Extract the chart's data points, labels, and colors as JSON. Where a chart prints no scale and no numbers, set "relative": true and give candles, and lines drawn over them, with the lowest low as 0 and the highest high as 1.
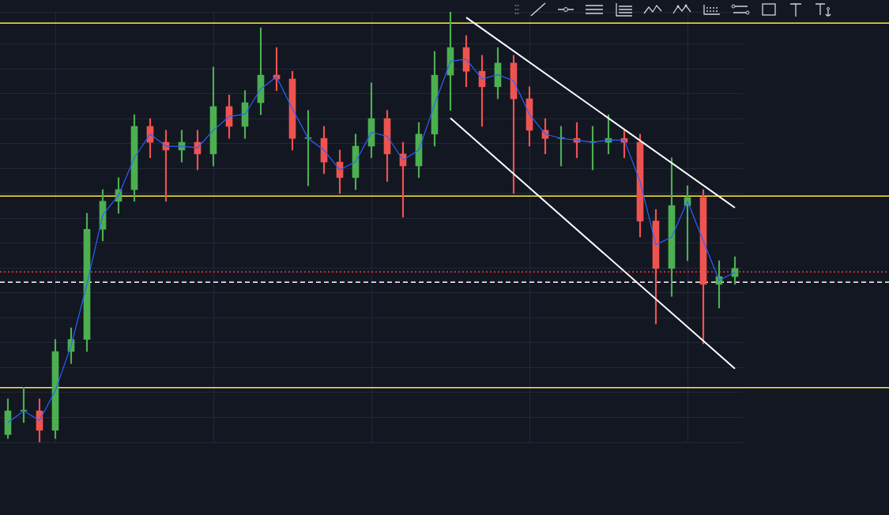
{
  "chart_data": {
    "type": "candlestick",
    "relative": true,
    "tick_labels": false,
    "grid": true,
    "categories": [
      null,
      null,
      null,
      null,
      null,
      null,
      null,
      null,
      null,
      null,
      null,
      null,
      null,
      null,
      null,
      null,
      null,
      null,
      null,
      null,
      null,
      null,
      null,
      null,
      null,
      null,
      null,
      null,
      null,
      null,
      null,
      null,
      null,
      null,
      null,
      null,
      null,
      null,
      null,
      null,
      null,
      null,
      null,
      null,
      null,
      null,
      null
    ],
    "ohlc": [
      [
        0.018,
        0.101,
        0.009,
        0.073
      ],
      [
        0.073,
        0.128,
        0.046,
        0.073
      ],
      [
        0.073,
        0.101,
        0,
        0.028
      ],
      [
        0.028,
        0.239,
        0.009,
        0.211
      ],
      [
        0.211,
        0.266,
        0.183,
        0.239
      ],
      [
        0.239,
        0.532,
        0.211,
        0.495
      ],
      [
        0.495,
        0.587,
        0.468,
        0.56
      ],
      [
        0.56,
        0.615,
        0.532,
        0.587
      ],
      [
        0.587,
        0.761,
        0.56,
        0.734
      ],
      [
        0.734,
        0.752,
        0.661,
        0.697
      ],
      [
        0.697,
        0.725,
        0.56,
        0.679
      ],
      [
        0.679,
        0.725,
        0.651,
        0.697
      ],
      [
        0.697,
        0.725,
        0.633,
        0.67
      ],
      [
        0.67,
        0.872,
        0.642,
        0.78
      ],
      [
        0.78,
        0.807,
        0.706,
        0.734
      ],
      [
        0.734,
        0.817,
        0.706,
        0.789
      ],
      [
        0.789,
        0.963,
        0.761,
        0.853
      ],
      [
        0.853,
        0.917,
        0.817,
        0.844
      ],
      [
        0.844,
        0.862,
        0.679,
        0.706
      ],
      [
        0.706,
        0.771,
        0.596,
        0.706
      ],
      [
        0.706,
        0.734,
        0.624,
        0.651
      ],
      [
        0.651,
        0.679,
        0.578,
        0.615
      ],
      [
        0.615,
        0.716,
        0.587,
        0.688
      ],
      [
        0.688,
        0.835,
        0.661,
        0.752
      ],
      [
        0.752,
        0.771,
        0.606,
        0.67
      ],
      [
        0.67,
        0.697,
        0.523,
        0.642
      ],
      [
        0.642,
        0.743,
        0.615,
        0.716
      ],
      [
        0.716,
        0.908,
        0.688,
        0.853
      ],
      [
        0.853,
        1,
        0.771,
        0.917
      ],
      [
        0.917,
        0.945,
        0.826,
        0.862
      ],
      [
        0.862,
        0.899,
        0.734,
        0.826
      ],
      [
        0.826,
        0.917,
        0.798,
        0.881
      ],
      [
        0.881,
        0.899,
        0.578,
        0.798
      ],
      [
        0.798,
        0.826,
        0.688,
        0.725
      ],
      [
        0.725,
        0.752,
        0.67,
        0.706
      ],
      [
        0.706,
        0.734,
        0.642,
        0.706
      ],
      [
        0.706,
        0.743,
        0.661,
        0.697
      ],
      [
        0.697,
        0.734,
        0.633,
        0.697
      ],
      [
        0.697,
        0.761,
        0.67,
        0.706
      ],
      [
        0.706,
        0.725,
        0.661,
        0.697
      ],
      [
        0.697,
        0.716,
        0.477,
        0.514
      ],
      [
        0.514,
        0.541,
        0.275,
        0.404
      ],
      [
        0.404,
        0.661,
        0.339,
        0.55
      ],
      [
        0.55,
        0.596,
        0.422,
        0.569
      ],
      [
        0.569,
        0.587,
        0.229,
        0.367
      ],
      [
        0.367,
        0.422,
        0.312,
        0.385
      ],
      [
        0.385,
        0.431,
        0.367,
        0.404
      ]
    ],
    "colors": [
      "#4caf50",
      "#4caf50",
      "#ef5350",
      "#4caf50",
      "#4caf50",
      "#4caf50",
      "#4caf50",
      "#4caf50",
      "#4caf50",
      "#ef5350",
      "#ef5350",
      "#4caf50",
      "#ef5350",
      "#4caf50",
      "#ef5350",
      "#4caf50",
      "#4caf50",
      "#ef5350",
      "#ef5350",
      "#4caf50",
      "#ef5350",
      "#ef5350",
      "#4caf50",
      "#4caf50",
      "#ef5350",
      "#ef5350",
      "#4caf50",
      "#4caf50",
      "#4caf50",
      "#ef5350",
      "#ef5350",
      "#4caf50",
      "#ef5350",
      "#ef5350",
      "#ef5350",
      "#4caf50",
      "#ef5350",
      "#4caf50",
      "#4caf50",
      "#ef5350",
      "#ef5350",
      "#ef5350",
      "#4caf50",
      "#4caf50",
      "#ef5350",
      "#4caf50",
      "#4caf50"
    ],
    "series": [
      {
        "type": "line",
        "color": "#2962ff",
        "values": [
          0.046,
          0.073,
          0.051,
          0.12,
          0.225,
          0.367,
          0.528,
          0.574,
          0.661,
          0.716,
          0.688,
          0.688,
          0.684,
          0.725,
          0.757,
          0.762,
          0.821,
          0.849,
          0.775,
          0.706,
          0.679,
          0.633,
          0.652,
          0.72,
          0.711,
          0.656,
          0.679,
          0.785,
          0.885,
          0.89,
          0.844,
          0.854,
          0.84,
          0.762,
          0.716,
          0.706,
          0.702,
          0.697,
          0.702,
          0.702,
          0.606,
          0.459,
          0.477,
          0.56,
          0.468,
          0.376,
          0.395
        ]
      },
      {
        "type": "line",
        "color": "#ffffff",
        "values": [
          null,
          null,
          null,
          null,
          null,
          null,
          null,
          null,
          null,
          null,
          null,
          null,
          null,
          null,
          null,
          null,
          null,
          null,
          null,
          null,
          null,
          null,
          null,
          null,
          null,
          null,
          null,
          null,
          null,
          0.987,
          null,
          null,
          null,
          null,
          null,
          null,
          null,
          null,
          null,
          null,
          null,
          null,
          null,
          null,
          null,
          null,
          0.545
        ]
      },
      {
        "type": "line",
        "color": "#ffffff",
        "values": [
          null,
          null,
          null,
          null,
          null,
          null,
          null,
          null,
          null,
          null,
          null,
          null,
          null,
          null,
          null,
          null,
          null,
          null,
          null,
          null,
          null,
          null,
          null,
          null,
          null,
          null,
          null,
          null,
          0.753,
          null,
          null,
          null,
          null,
          null,
          null,
          null,
          null,
          null,
          null,
          null,
          null,
          null,
          null,
          null,
          null,
          null,
          0.171
        ]
      }
    ],
    "ref_lines": [
      {
        "axis": "y",
        "value": 0.974,
        "color": "#ffeb3b"
      },
      {
        "axis": "y",
        "value": 0.572,
        "color": "#ffeb3b"
      },
      {
        "axis": "y",
        "value": 0.127,
        "color": "#ffeb3b"
      },
      {
        "axis": "y",
        "value": 0.396,
        "color": "#f23645",
        "line_style": "dotted"
      },
      {
        "axis": "y",
        "value": 0.372,
        "color": "#ffffff",
        "line_style": "dashed"
      }
    ]
  }
}
